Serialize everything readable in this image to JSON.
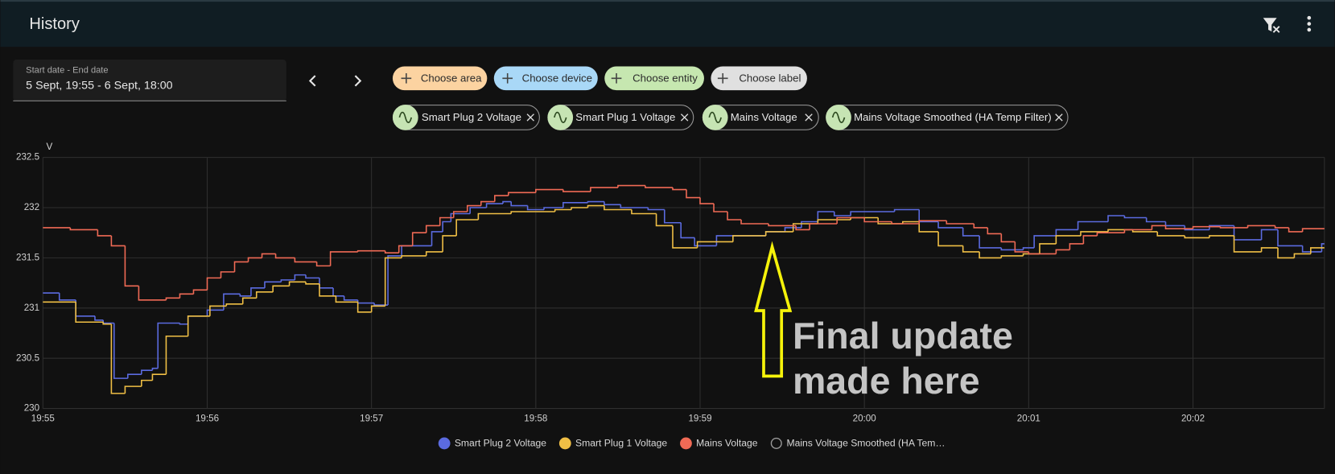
{
  "header": {
    "title": "History"
  },
  "date_picker": {
    "label": "Start date - End date",
    "value": "5 Sept, 19:55 - 6 Sept, 18:00"
  },
  "filters": [
    "Choose area",
    "Choose device",
    "Choose entity",
    "Choose label"
  ],
  "entity_chips": [
    "Smart Plug 2 Voltage",
    "Smart Plug 1 Voltage",
    "Mains Voltage",
    "Mains Voltage Smoothed (HA Temp Filter)"
  ],
  "chart_data": {
    "type": "step-line",
    "y_label": "V",
    "xlim": [
      "19:55:00",
      "20:02:48"
    ],
    "xticks": [
      "19:55",
      "19:56",
      "19:57",
      "19:58",
      "19:59",
      "20:00",
      "20:01",
      "20:02"
    ],
    "ylim": [
      230,
      232.5
    ],
    "yticks": [
      230,
      230.5,
      231,
      231.5,
      232,
      232.5
    ],
    "grid": true,
    "legend": "bottom",
    "annotation_lines": [
      "Final update",
      "made here"
    ],
    "series": [
      {
        "name": "Smart Plug 2 Voltage",
        "color": "#5b6be0",
        "x": [
          "19:55:00",
          "19:55:06",
          "19:55:12",
          "19:55:19",
          "19:55:22",
          "19:55:26",
          "19:55:31",
          "19:55:36",
          "19:55:40",
          "19:55:42",
          "19:55:50",
          "19:55:53",
          "19:56:00",
          "19:56:06",
          "19:56:12",
          "19:56:16",
          "19:56:21",
          "19:56:27",
          "19:56:32",
          "19:56:36",
          "19:56:41",
          "19:56:46",
          "19:56:50",
          "19:56:55",
          "19:57:01",
          "19:57:06",
          "19:57:11",
          "19:57:22",
          "19:57:26",
          "19:57:29",
          "19:57:36",
          "19:57:42",
          "19:57:48",
          "19:57:51",
          "19:57:57",
          "19:58:03",
          "19:58:10",
          "19:58:19",
          "19:58:25",
          "19:58:31",
          "19:58:41",
          "19:58:47",
          "19:58:53",
          "19:58:58",
          "19:59:06",
          "19:59:24",
          "19:59:31",
          "19:59:37",
          "19:59:43",
          "19:59:49",
          "19:59:55",
          "20:00:11",
          "20:00:20",
          "20:00:27",
          "20:00:36",
          "20:00:42",
          "20:00:50",
          "20:00:58",
          "20:01:02",
          "20:01:10",
          "20:01:18",
          "20:01:29",
          "20:01:35",
          "20:01:43",
          "20:01:50",
          "20:01:57",
          "20:02:06",
          "20:02:15",
          "20:02:25",
          "20:02:31",
          "20:02:40",
          "20:02:47"
        ],
        "values": [
          231.15,
          231.08,
          230.92,
          230.88,
          230.85,
          230.3,
          230.34,
          230.38,
          230.4,
          230.85,
          230.84,
          230.92,
          230.98,
          231.14,
          231.12,
          231.2,
          231.26,
          231.28,
          231.33,
          231.3,
          231.2,
          231.12,
          231.08,
          231.05,
          231.03,
          231.52,
          231.62,
          231.76,
          231.86,
          231.94,
          232.0,
          232.04,
          232.06,
          232.02,
          231.98,
          232.0,
          232.05,
          232.06,
          232.03,
          232.0,
          231.98,
          231.85,
          231.7,
          231.62,
          231.72,
          231.76,
          231.8,
          231.86,
          231.96,
          231.92,
          231.96,
          231.98,
          231.86,
          231.8,
          231.72,
          231.6,
          231.58,
          231.6,
          231.72,
          231.78,
          231.86,
          231.92,
          231.9,
          231.86,
          231.82,
          231.78,
          231.82,
          231.68,
          231.78,
          231.62,
          231.56,
          231.64
        ]
      },
      {
        "name": "Smart Plug 1 Voltage",
        "color": "#f0bf45",
        "x": [
          "19:55:00",
          "19:55:12",
          "19:55:22",
          "19:55:25",
          "19:55:30",
          "19:55:36",
          "19:55:40",
          "19:55:45",
          "19:55:53",
          "19:56:01",
          "19:56:07",
          "19:56:13",
          "19:56:18",
          "19:56:24",
          "19:56:30",
          "19:56:36",
          "19:56:41",
          "19:56:47",
          "19:56:55",
          "19:57:00",
          "19:57:05",
          "19:57:11",
          "19:57:20",
          "19:57:26",
          "19:57:31",
          "19:57:39",
          "19:57:51",
          "19:58:07",
          "19:58:13",
          "19:58:19",
          "19:58:25",
          "19:58:35",
          "19:58:44",
          "19:58:50",
          "19:58:59",
          "19:59:12",
          "19:59:24",
          "19:59:34",
          "19:59:43",
          "19:59:55",
          "20:00:05",
          "20:00:14",
          "20:00:20",
          "20:00:27",
          "20:00:36",
          "20:00:42",
          "20:00:50",
          "20:00:58",
          "20:01:04",
          "20:01:10",
          "20:01:19",
          "20:01:29",
          "20:01:38",
          "20:01:47",
          "20:01:57",
          "20:02:06",
          "20:02:15",
          "20:02:25",
          "20:02:31",
          "20:02:37",
          "20:02:43"
        ],
        "values": [
          231.06,
          230.86,
          230.84,
          230.15,
          230.22,
          230.28,
          230.34,
          230.72,
          230.92,
          231.02,
          231.04,
          231.1,
          231.16,
          231.22,
          231.26,
          231.24,
          231.12,
          231.06,
          230.96,
          231.02,
          231.5,
          231.52,
          231.56,
          231.72,
          231.88,
          231.94,
          231.96,
          231.98,
          232.0,
          232.02,
          231.98,
          231.94,
          231.82,
          231.6,
          231.66,
          231.72,
          231.76,
          231.84,
          231.88,
          231.9,
          231.84,
          231.86,
          231.76,
          231.62,
          231.56,
          231.5,
          231.52,
          231.54,
          231.64,
          231.72,
          231.76,
          231.78,
          231.76,
          231.72,
          231.7,
          231.72,
          231.56,
          231.6,
          231.5,
          231.54,
          231.6
        ]
      },
      {
        "name": "Mains Voltage",
        "color": "#f06a55",
        "x": [
          "19:55:00",
          "19:55:10",
          "19:55:20",
          "19:55:25",
          "19:55:30",
          "19:55:35",
          "19:55:45",
          "19:55:50",
          "19:55:55",
          "19:56:00",
          "19:56:05",
          "19:56:10",
          "19:56:15",
          "19:56:20",
          "19:56:25",
          "19:56:32",
          "19:56:40",
          "19:56:45",
          "19:56:55",
          "19:57:05",
          "19:57:10",
          "19:57:15",
          "19:57:20",
          "19:57:25",
          "19:57:30",
          "19:57:35",
          "19:57:40",
          "19:57:45",
          "19:57:50",
          "19:58:00",
          "19:58:10",
          "19:58:20",
          "19:58:30",
          "19:58:40",
          "19:58:50",
          "19:58:55",
          "19:59:00",
          "19:59:05",
          "19:59:10",
          "19:59:15",
          "19:59:25",
          "19:59:35",
          "19:59:40",
          "19:59:50",
          "20:00:00",
          "20:00:10",
          "20:00:20",
          "20:00:30",
          "20:00:40",
          "20:00:45",
          "20:00:50",
          "20:00:55",
          "20:01:00",
          "20:01:10",
          "20:01:15",
          "20:01:20",
          "20:01:25",
          "20:01:35",
          "20:01:45",
          "20:01:50",
          "20:02:00",
          "20:02:10",
          "20:02:20",
          "20:02:30",
          "20:02:35",
          "20:02:40"
        ],
        "values": [
          231.8,
          231.78,
          231.72,
          231.62,
          231.22,
          231.08,
          231.1,
          231.14,
          231.18,
          231.3,
          231.36,
          231.46,
          231.5,
          231.54,
          231.5,
          231.46,
          231.42,
          231.56,
          231.57,
          231.55,
          231.62,
          231.75,
          231.82,
          231.9,
          231.96,
          232.02,
          232.06,
          232.12,
          232.15,
          232.18,
          232.16,
          232.2,
          232.22,
          232.2,
          232.18,
          232.1,
          232.04,
          231.96,
          231.88,
          231.84,
          231.82,
          231.78,
          231.84,
          231.9,
          231.86,
          231.84,
          231.87,
          231.84,
          231.8,
          231.74,
          231.66,
          231.56,
          231.54,
          231.58,
          231.64,
          231.72,
          231.75,
          231.78,
          231.82,
          231.79,
          231.81,
          231.8,
          231.82,
          231.8,
          231.76,
          231.79
        ]
      },
      {
        "name": "Mains Voltage Smoothed (HA Tem…",
        "hidden": true,
        "x": [],
        "values": []
      }
    ]
  }
}
